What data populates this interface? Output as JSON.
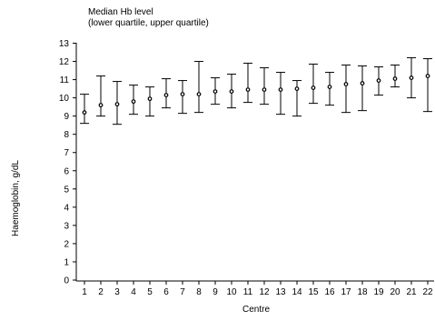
{
  "chart_data": {
    "type": "error-bar",
    "title": "Median Hb level",
    "subtitle": "(lower quartile, upper quartile)",
    "xlabel": "Centre",
    "ylabel": "Haemoglobin, g/dL",
    "ylim": [
      0,
      13
    ],
    "yticks": [
      "0",
      "1",
      "2",
      "3",
      "4",
      "5",
      "6",
      "7",
      "8",
      "9",
      "10",
      "11",
      "12",
      "13"
    ],
    "categories": [
      "1",
      "2",
      "3",
      "4",
      "5",
      "6",
      "7",
      "8",
      "9",
      "10",
      "11",
      "12",
      "13",
      "14",
      "15",
      "16",
      "17",
      "18",
      "19",
      "20",
      "21",
      "22"
    ],
    "median": [
      9.2,
      9.6,
      9.65,
      9.8,
      9.95,
      10.15,
      10.2,
      10.2,
      10.35,
      10.35,
      10.45,
      10.45,
      10.45,
      10.5,
      10.55,
      10.6,
      10.75,
      10.8,
      10.95,
      11.05,
      11.1,
      11.2
    ],
    "lower_quartile": [
      8.6,
      9.0,
      8.55,
      9.1,
      9.0,
      9.45,
      9.15,
      9.2,
      9.65,
      9.45,
      9.75,
      9.65,
      9.1,
      9.0,
      9.7,
      9.6,
      9.2,
      9.3,
      10.15,
      10.6,
      10.0,
      9.25
    ],
    "upper_quartile": [
      10.2,
      11.2,
      10.9,
      10.7,
      10.6,
      11.05,
      10.95,
      12.0,
      11.1,
      11.3,
      11.9,
      11.65,
      11.4,
      10.95,
      11.85,
      11.4,
      11.8,
      11.75,
      11.7,
      11.8,
      12.2,
      12.15
    ],
    "grid": false,
    "legend": "none"
  }
}
